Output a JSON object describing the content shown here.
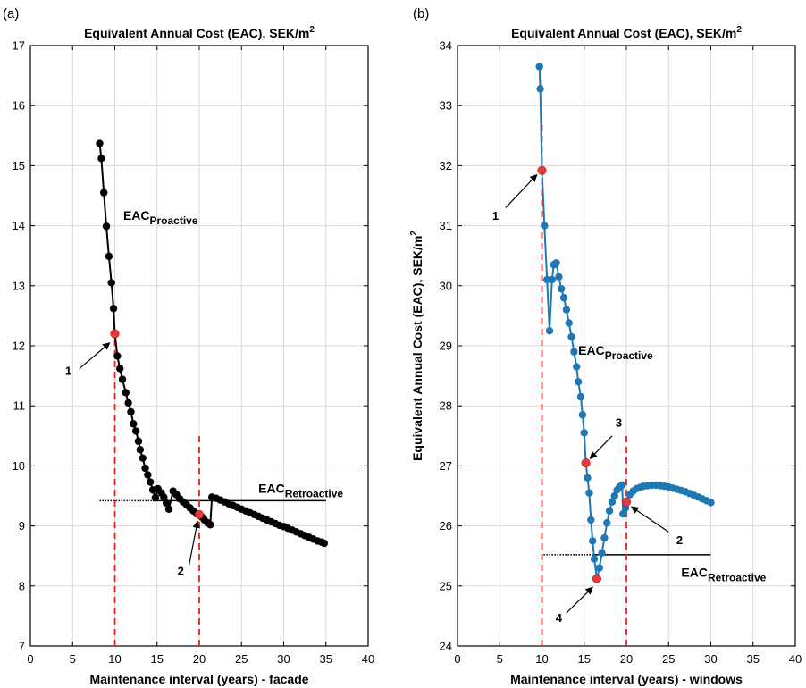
{
  "chart_data": [
    {
      "type": "scatter",
      "panel_label": "(a)",
      "title": "Equivalent Annual Cost (EAC), SEK/m",
      "title_sup": "2",
      "xlabel": "Maintenance interval (years) - facade",
      "ylabel": "",
      "xlim": [
        0,
        40
      ],
      "ylim": [
        7,
        17
      ],
      "xticks": [
        "0",
        "5",
        "10",
        "15",
        "20",
        "25",
        "30",
        "35",
        "40"
      ],
      "yticks": [
        "7",
        "8",
        "9",
        "10",
        "11",
        "12",
        "13",
        "14",
        "15",
        "16",
        "17"
      ],
      "grid": true,
      "series": [
        {
          "color": "#000000",
          "line": true,
          "points": [
            [
              8.2,
              15.37
            ],
            [
              8.4,
              15.12
            ],
            [
              8.7,
              14.55
            ],
            [
              9.0,
              13.99
            ],
            [
              9.3,
              13.49
            ],
            [
              9.6,
              13.05
            ],
            [
              9.85,
              12.62
            ],
            [
              10.0,
              12.2
            ],
            [
              10.3,
              11.83
            ],
            [
              10.6,
              11.62
            ],
            [
              10.9,
              11.44
            ],
            [
              11.3,
              11.22
            ],
            [
              11.6,
              11.05
            ],
            [
              11.9,
              10.9
            ],
            [
              12.2,
              10.7
            ],
            [
              12.5,
              10.58
            ],
            [
              12.8,
              10.41
            ],
            [
              13.0,
              10.27
            ],
            [
              13.3,
              10.13
            ],
            [
              13.6,
              9.96
            ],
            [
              13.9,
              9.85
            ],
            [
              14.2,
              9.73
            ],
            [
              14.5,
              9.6
            ],
            [
              14.8,
              9.47
            ],
            [
              15.1,
              9.62
            ],
            [
              15.5,
              9.55
            ],
            [
              15.8,
              9.48
            ],
            [
              16.1,
              9.38
            ],
            [
              16.4,
              9.28
            ],
            [
              16.9,
              9.58
            ],
            [
              17.3,
              9.52
            ],
            [
              17.7,
              9.45
            ],
            [
              18.1,
              9.4
            ],
            [
              18.5,
              9.35
            ],
            [
              18.9,
              9.3
            ],
            [
              19.3,
              9.25
            ],
            [
              19.7,
              9.2
            ],
            [
              20.0,
              9.19
            ],
            [
              20.3,
              9.15
            ],
            [
              20.6,
              9.1
            ],
            [
              21.0,
              9.05
            ],
            [
              21.3,
              9.02
            ],
            [
              21.5,
              9.48
            ],
            [
              22.0,
              9.46
            ],
            [
              22.5,
              9.43
            ],
            [
              23.0,
              9.4
            ],
            [
              23.5,
              9.37
            ],
            [
              24.0,
              9.34
            ],
            [
              24.5,
              9.31
            ],
            [
              25.0,
              9.28
            ],
            [
              25.5,
              9.25
            ],
            [
              26.0,
              9.22
            ],
            [
              26.5,
              9.19
            ],
            [
              27.0,
              9.16
            ],
            [
              27.5,
              9.13
            ],
            [
              28.0,
              9.1
            ],
            [
              28.5,
              9.07
            ],
            [
              29.0,
              9.04
            ],
            [
              29.5,
              9.01
            ],
            [
              30.0,
              8.99
            ],
            [
              30.5,
              8.96
            ],
            [
              31.0,
              8.93
            ],
            [
              31.5,
              8.9
            ],
            [
              32.0,
              8.87
            ],
            [
              32.5,
              8.84
            ],
            [
              33.0,
              8.81
            ],
            [
              33.5,
              8.78
            ],
            [
              34.0,
              8.75
            ],
            [
              34.5,
              8.73
            ],
            [
              34.8,
              8.71
            ]
          ]
        }
      ],
      "highlight_points": [
        {
          "x": 10.0,
          "y": 12.2,
          "color": "#e03c3c",
          "label": "1"
        },
        {
          "x": 20.0,
          "y": 9.19,
          "color": "#e03c3c",
          "label": "2"
        }
      ],
      "vlines": [
        {
          "x": 10,
          "y_from": 7,
          "y_to": 12.2,
          "color": "#d62728"
        },
        {
          "x": 20,
          "y_from": 7,
          "y_to": 10.5,
          "color": "#d62728"
        }
      ],
      "hlines": [
        {
          "y": 9.42,
          "x_from": 8.2,
          "x_to": 14.5,
          "dotted": true
        },
        {
          "y": 9.42,
          "x_from": 14.5,
          "x_to": 35,
          "dotted": false
        }
      ],
      "labels": [
        {
          "main": "EAC",
          "sub": "Proactive",
          "x": 11,
          "y": 14.1
        },
        {
          "main": "EAC",
          "sub": "Retroactive",
          "x": 27,
          "y": 9.55
        }
      ],
      "callouts": [
        {
          "text": "1",
          "tx": 4.5,
          "ty": 11.52,
          "ax1": 5.8,
          "ay1": 11.62,
          "ax2": 9.4,
          "ay2": 12.05
        },
        {
          "text": "2",
          "tx": 17.8,
          "ty": 8.18,
          "ax1": 18.8,
          "ay1": 8.35,
          "ax2": 19.8,
          "ay2": 9.08
        }
      ]
    },
    {
      "type": "scatter",
      "panel_label": "(b)",
      "title": "Equivalent Annual Cost (EAC), SEK/m",
      "title_sup": "2",
      "xlabel": "Maintenance interval (years) - windows",
      "ylabel": "Equivalent Annual Cost (EAC), SEK/m",
      "ylabel_sup": "2",
      "xlim": [
        0,
        40
      ],
      "ylim": [
        24,
        34
      ],
      "xticks": [
        "0",
        "5",
        "10",
        "15",
        "20",
        "25",
        "30",
        "35",
        "40"
      ],
      "yticks": [
        "24",
        "25",
        "26",
        "27",
        "28",
        "29",
        "30",
        "31",
        "32",
        "33",
        "34"
      ],
      "grid": true,
      "series": [
        {
          "color": "#1f77b4",
          "line": true,
          "points": [
            [
              9.7,
              33.65
            ],
            [
              9.8,
              33.28
            ],
            [
              10.0,
              31.92
            ],
            [
              10.3,
              31.0
            ],
            [
              10.6,
              30.1
            ],
            [
              10.9,
              29.25
            ],
            [
              11.2,
              30.1
            ],
            [
              11.4,
              30.35
            ],
            [
              11.7,
              30.38
            ],
            [
              12.0,
              30.15
            ],
            [
              12.3,
              29.95
            ],
            [
              12.6,
              29.8
            ],
            [
              12.9,
              29.6
            ],
            [
              13.2,
              29.38
            ],
            [
              13.5,
              29.15
            ],
            [
              13.8,
              28.9
            ],
            [
              14.1,
              28.65
            ],
            [
              14.3,
              28.4
            ],
            [
              14.6,
              28.15
            ],
            [
              14.8,
              27.85
            ],
            [
              15.0,
              27.55
            ],
            [
              15.2,
              27.05
            ],
            [
              15.4,
              26.8
            ],
            [
              15.6,
              26.55
            ],
            [
              15.8,
              26.1
            ],
            [
              16.0,
              25.75
            ],
            [
              16.2,
              25.45
            ],
            [
              16.5,
              25.12
            ],
            [
              16.8,
              25.3
            ],
            [
              17.1,
              25.55
            ],
            [
              17.4,
              25.8
            ],
            [
              17.7,
              26.05
            ],
            [
              18.0,
              26.25
            ],
            [
              18.3,
              26.4
            ],
            [
              18.6,
              26.5
            ],
            [
              18.9,
              26.6
            ],
            [
              19.2,
              26.65
            ],
            [
              19.5,
              26.68
            ],
            [
              19.6,
              26.2
            ],
            [
              19.9,
              26.3
            ],
            [
              20.0,
              26.4
            ],
            [
              20.4,
              26.52
            ],
            [
              20.8,
              26.58
            ],
            [
              21.2,
              26.62
            ],
            [
              21.6,
              26.64
            ],
            [
              22.0,
              26.66
            ],
            [
              22.5,
              26.67
            ],
            [
              23.0,
              26.68
            ],
            [
              23.5,
              26.68
            ],
            [
              24.0,
              26.67
            ],
            [
              24.5,
              26.66
            ],
            [
              25.0,
              26.65
            ],
            [
              25.5,
              26.63
            ],
            [
              26.0,
              26.61
            ],
            [
              26.5,
              26.59
            ],
            [
              27.0,
              26.57
            ],
            [
              27.5,
              26.54
            ],
            [
              28.0,
              26.51
            ],
            [
              28.5,
              26.48
            ],
            [
              29.0,
              26.45
            ],
            [
              29.5,
              26.42
            ],
            [
              30.0,
              26.39
            ]
          ]
        }
      ],
      "highlight_points": [
        {
          "x": 10.0,
          "y": 31.92,
          "color": "#e03c3c",
          "label": "1"
        },
        {
          "x": 20.0,
          "y": 26.4,
          "color": "#e03c3c",
          "label": "2"
        },
        {
          "x": 15.2,
          "y": 27.05,
          "color": "#e03c3c",
          "label": "3"
        },
        {
          "x": 16.5,
          "y": 25.12,
          "color": "#e03c3c",
          "label": "4"
        }
      ],
      "vlines": [
        {
          "x": 10,
          "y_from": 24,
          "y_to": 32.7,
          "color": "#d62728"
        },
        {
          "x": 20,
          "y_from": 24,
          "y_to": 27.5,
          "color": "#d62728"
        }
      ],
      "hlines": [
        {
          "y": 25.52,
          "x_from": 10.2,
          "x_to": 16,
          "dotted": true
        },
        {
          "y": 25.52,
          "x_from": 16,
          "x_to": 30,
          "dotted": false
        }
      ],
      "labels": [
        {
          "main": "EAC",
          "sub": "Proactive",
          "x": 14.3,
          "y": 28.85
        },
        {
          "main": "EAC",
          "sub": "Retroactive",
          "x": 26.5,
          "y": 25.15
        }
      ],
      "callouts": [
        {
          "text": "1",
          "tx": 4.5,
          "ty": 31.1,
          "ax1": 5.7,
          "ay1": 31.3,
          "ax2": 9.4,
          "ay2": 31.85
        },
        {
          "text": "2",
          "tx": 26.3,
          "ty": 25.7,
          "ax1": 25.0,
          "ay1": 25.9,
          "ax2": 20.6,
          "ay2": 26.32
        },
        {
          "text": "3",
          "tx": 19.1,
          "ty": 27.65,
          "ax1": 18.3,
          "ay1": 27.5,
          "ax2": 15.7,
          "ay2": 27.12
        },
        {
          "text": "4",
          "tx": 12.0,
          "ty": 24.4,
          "ax1": 12.9,
          "ay1": 24.55,
          "ax2": 16.0,
          "ay2": 24.98
        }
      ]
    }
  ]
}
